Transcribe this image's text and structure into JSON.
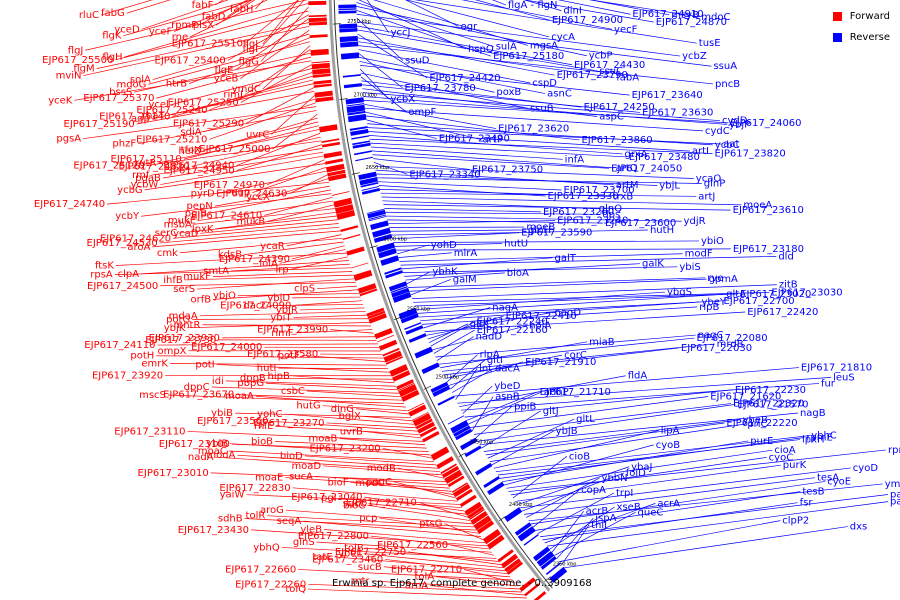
{
  "caption": "Erwinia sp. Ejp617, complete genome. - 0..3909168",
  "legend": [
    {
      "label": "Forward",
      "color": "#ff0000"
    },
    {
      "label": "Reverse",
      "color": "#0000ff"
    }
  ],
  "colors": {
    "forward": "#ff0000",
    "reverse": "#0000ff",
    "backbone": "#999999"
  },
  "ticks": [
    "2800 kbp",
    "2750 kbp",
    "2700 kbp",
    "2650 kbp",
    "2600 kbp",
    "2550 kbp",
    "2500 kbp",
    "2450 kbp",
    "2400 kbp",
    "2350 kbp"
  ],
  "reverse_labels": [
    "flgA - flgN",
    "dinI",
    "msyB",
    "EJP617_24910",
    "mdoC",
    "EJP617_24900",
    "EJP617_24870",
    "ogr",
    "yecF",
    "yccJ",
    "cycA",
    "tusE",
    "mgsA",
    "hspQ",
    "sulA",
    "ycbP",
    "EJP617_25180",
    "ycbZ",
    "ssuD",
    "ssuA",
    "EJP617_24430",
    "ssuC",
    "EJP617_24420",
    "EJP617_23790",
    "fabA",
    "pncB",
    "cspD",
    "EJP617_23780",
    "asnC",
    "poxB",
    "EJP617_23640",
    "ycbX",
    "ssuB",
    "ompF",
    "EJP617_24250",
    "EJP617_23630",
    "aspC",
    "cydD",
    "ybjP",
    "EJP617_24060",
    "EJP617_23620",
    "cydC",
    "artP",
    "EJP617_23860",
    "EJP617_23490",
    "ycbC",
    "aat",
    "artI",
    "grxA",
    "EJP617_23820",
    "EJP617_23480",
    "infA",
    "artQ",
    "EJP617_24050",
    "EJP617_23750",
    "EJP617_23340",
    "ycaO",
    "artM",
    "ybjL",
    "glnP",
    "EJP617_23700",
    "EJP617_23330",
    "trxB",
    "artJ",
    "moeA",
    "glnQ",
    "EJP617_23610",
    "EJP617_23260",
    "dps",
    "ydjR",
    "EJP617_23600",
    "EJP617_23240",
    "moeB",
    "glnH",
    "hutH",
    "EJP617_23590",
    "ybiO",
    "hutU",
    "EJP617_23180",
    "yohD",
    "mlrA",
    "modF",
    "dld",
    "galT",
    "ybiS",
    "galK",
    "bioA",
    "ybhK",
    "rve",
    "gpmA",
    "galM",
    "zitB",
    "EJP617_23030",
    "EJP617_23020",
    "ybgS",
    "gltA",
    "EJP617_22700",
    "ybeY",
    "rlpB",
    "nagA",
    "EJP617_22420",
    "nagD",
    "EJP617_22410",
    "gltK",
    "EJP617_22240",
    "holA",
    "EJP617_22160",
    "nagC",
    "nadD",
    "EJP617_22080",
    "miaB",
    "mrdB",
    "EJP617_22030",
    "corC",
    "rlpA",
    "EJP617_21910",
    "gltI",
    "dacA",
    "EJP617_21810",
    "lnt",
    "leuS",
    "fldA",
    "fur",
    "ybeD",
    "EJP617_22230",
    "EJP617_21710",
    "adhP",
    "EJP617_21620",
    "asnB",
    "EJP617_22320",
    "ppiB",
    "EJP617_21570",
    "nagB",
    "gltJ",
    "ybeB",
    "EJP617_22220",
    "gltL",
    "priC",
    "ybjB",
    "lipA",
    "ybhC",
    "lpxH",
    "rpmE",
    "purE",
    "cyoB",
    "cioA",
    "rpmJ2",
    "cyoC",
    "cioB",
    "purK",
    "ybaJ",
    "cyoD",
    "folD",
    "tesA",
    "ybbN",
    "ymoA",
    "cyoE",
    "copA",
    "tesB",
    "trpI",
    "panE",
    "fsr",
    "acrA",
    "pagO",
    "xseB",
    "acrB",
    "queC",
    "ispA",
    "clpP2",
    "thiJ",
    "dxs"
  ],
  "forward_labels": [
    "fabF",
    "fabH",
    "rluC",
    "fabG",
    "fabD",
    "plsX",
    "rpmF",
    "yceD",
    "yceF",
    "rne",
    "flgK",
    "flgL",
    "EJP617_25510",
    "flgI",
    "flgJ",
    "flgH",
    "flgG",
    "EJP617_25500",
    "EJP617_25400",
    "flgE",
    "flgM",
    "mviN",
    "yceB",
    "solA",
    "htrB",
    "mdoG",
    "ymdC",
    "rimJ",
    "bssS",
    "EJP617_25370",
    "yceK",
    "EJP617_25250",
    "ycel",
    "EJP617_25240",
    "EJP617_25140",
    "rhaT",
    "agp",
    "EJP617_25290",
    "EJP617_25190",
    "uvrC",
    "sdiA",
    "EJP617_25210",
    "pgsA",
    "phzF",
    "EJP617_25000",
    "helD",
    "tfoX",
    "EJP617_25110",
    "rutR",
    "EJP617_24940",
    "EJP617_24820",
    "EJP617_25120",
    "EJP617_24950",
    "rmf",
    "pgaB",
    "ycbW",
    "EJP617_24970",
    "ycbG",
    "uup",
    "pyrD",
    "EJP617_24630",
    "yccX",
    "EJP617_24740",
    "pepN",
    "pqiB",
    "ycbY",
    "EJP617_24610",
    "mukE",
    "mukB",
    "msbA",
    "lpxK",
    "serC",
    "ycaD",
    "EJP617_24620",
    "EJP617_24530",
    "aroA",
    "ycaR",
    "cmk",
    "kdsB",
    "EJP617_24390",
    "lolA",
    "ftsK",
    "lrp",
    "clpA",
    "smtA",
    "rpsA",
    "mukF",
    "ihfB",
    "serS",
    "EJP617_24500",
    "clpS",
    "orfB",
    "ybjO",
    "ybjD",
    "EJP617_24090",
    "dacC",
    "ybjR",
    "mdaA",
    "ybiT",
    "potG",
    "ybjK",
    "mntR",
    "rimF",
    "EJP617_23990",
    "EJP617_23930",
    "EJP617_23730",
    "EJP617_24110",
    "EJP617_24000",
    "ompX",
    "EJP617_23580",
    "potH",
    "potF",
    "emrK",
    "hutI",
    "potI",
    "EJP617_23920",
    "dppB",
    "hipB",
    "idi",
    "pbpG",
    "dppC",
    "csbC",
    "EJP617_23670",
    "mscS",
    "moaA",
    "hutG",
    "dinG",
    "ybiB",
    "bglX",
    "yohC",
    "EJP617_23270",
    "EJP617_23560",
    "rhlE",
    "uvrB",
    "EJP617_23110",
    "moaB",
    "bioB",
    "EJP617_23100",
    "ybiB",
    "EJP617_23200",
    "moaC",
    "bioD",
    "modA",
    "nadA",
    "moaD",
    "modB",
    "EJP617_23010",
    "sucA",
    "moaE",
    "bioF",
    "modC",
    "pnuC",
    "EJP617_22830",
    "yaiW",
    "pgl",
    "EJP617_23040",
    "sucC",
    "EJP617_22710",
    "bioC",
    "aroG",
    "tolR",
    "sdhB",
    "pcp",
    "seqA",
    "ptsG",
    "yleB",
    "EJP617_23430",
    "EJP617_22800",
    "glnS",
    "EJP617_22560",
    "ybhQ",
    "tolB",
    "EJP617_22750",
    "ybeL",
    "tatE",
    "EJP617_23460",
    "sucB",
    "EJP617_22660",
    "EJP617_22210",
    "tolA",
    "mtr",
    "EJP617_22260",
    "arnA",
    "tolQ"
  ]
}
